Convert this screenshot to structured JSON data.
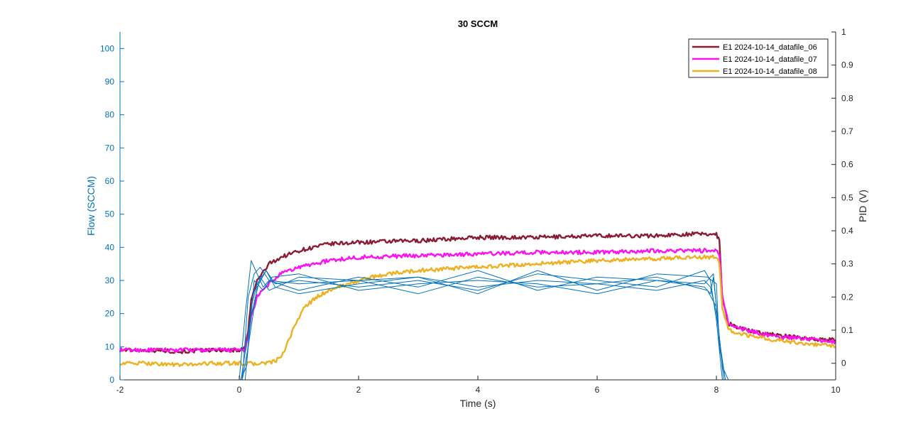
{
  "chart_data": {
    "type": "line",
    "title": "30 SCCM",
    "xlabel": "Time (s)",
    "ylabel_left": "Flow (SCCM)",
    "ylabel_right": "PID (V)",
    "xlim": [
      -2,
      10
    ],
    "ylim_left": [
      0,
      105
    ],
    "ylim_right": [
      -0.05,
      1.0
    ],
    "x_ticks": [
      "-2",
      "0",
      "2",
      "4",
      "6",
      "8",
      "10"
    ],
    "y_left_ticks": [
      "0",
      "10",
      "20",
      "30",
      "40",
      "50",
      "60",
      "70",
      "80",
      "90",
      "100"
    ],
    "y_right_ticks": [
      "0",
      "0.1",
      "0.2",
      "0.3",
      "0.4",
      "0.5",
      "0.6",
      "0.7",
      "0.8",
      "0.9",
      "1"
    ],
    "grid": false,
    "legend_position": "top-right",
    "colors": {
      "left_axis": "#0072BD",
      "flow_lines": "#0072BD",
      "right_axis": "#262626"
    },
    "series": [
      {
        "name": "E1 2024-10-14_datafile_06",
        "axis": "right",
        "color": "#8B1A33",
        "x": [
          -2,
          -1.5,
          -1,
          -0.5,
          0,
          0.1,
          0.15,
          0.2,
          0.3,
          0.5,
          0.7,
          1.0,
          1.5,
          2,
          3,
          4,
          5,
          6,
          7,
          7.5,
          7.9,
          8.0,
          8.05,
          8.1,
          8.2,
          8.5,
          9,
          9.5,
          10
        ],
        "y": [
          0.04,
          0.04,
          0.035,
          0.04,
          0.04,
          0.045,
          0.1,
          0.19,
          0.25,
          0.3,
          0.32,
          0.34,
          0.36,
          0.365,
          0.37,
          0.38,
          0.38,
          0.385,
          0.385,
          0.39,
          0.39,
          0.39,
          0.37,
          0.2,
          0.12,
          0.1,
          0.085,
          0.075,
          0.07
        ]
      },
      {
        "name": "E1 2024-10-14_datafile_07",
        "axis": "right",
        "color": "#FF10F0",
        "x": [
          -2,
          -1.5,
          -1,
          -0.5,
          0,
          0.1,
          0.15,
          0.2,
          0.3,
          0.5,
          0.7,
          1.0,
          1.5,
          2,
          3,
          4,
          5,
          6,
          7,
          7.5,
          7.9,
          8.0,
          8.05,
          8.1,
          8.2,
          8.5,
          9,
          9.5,
          10
        ],
        "y": [
          0.04,
          0.04,
          0.04,
          0.04,
          0.04,
          0.04,
          0.08,
          0.14,
          0.2,
          0.24,
          0.27,
          0.29,
          0.31,
          0.32,
          0.325,
          0.33,
          0.335,
          0.335,
          0.34,
          0.34,
          0.34,
          0.34,
          0.33,
          0.2,
          0.12,
          0.1,
          0.08,
          0.075,
          0.065
        ]
      },
      {
        "name": "E1 2024-10-14_datafile_08",
        "axis": "right",
        "color": "#EDB120",
        "x": [
          -2,
          -1.5,
          -1,
          -0.5,
          0,
          0.3,
          0.6,
          0.75,
          0.85,
          0.9,
          1.0,
          1.1,
          1.3,
          1.5,
          2,
          2.5,
          3,
          4,
          5,
          6,
          7,
          7.5,
          7.9,
          8.0,
          8.05,
          8.1,
          8.2,
          8.5,
          9,
          9.5,
          10
        ],
        "y": [
          0,
          0,
          -0.005,
          0,
          0,
          -0.002,
          0.005,
          0.03,
          0.08,
          0.1,
          0.14,
          0.17,
          0.2,
          0.22,
          0.25,
          0.27,
          0.28,
          0.29,
          0.3,
          0.31,
          0.315,
          0.32,
          0.32,
          0.32,
          0.3,
          0.17,
          0.1,
          0.085,
          0.07,
          0.06,
          0.05
        ]
      },
      {
        "axis": "left",
        "color": "#0072BD",
        "x": [
          -0.2,
          0,
          0.1,
          0.2,
          0.3,
          0.4,
          0.5,
          1,
          2,
          3,
          4,
          5,
          6,
          7,
          7.8,
          7.9,
          8.0,
          8.1,
          8.15
        ],
        "y": [
          0,
          0,
          20,
          36,
          32,
          28,
          30,
          29,
          30,
          31,
          28,
          30,
          29,
          27,
          30,
          28,
          20,
          5,
          0
        ]
      },
      {
        "axis": "left",
        "color": "#0072BD",
        "x": [
          -0.1,
          0.05,
          0.15,
          0.25,
          0.35,
          0.5,
          1,
          2,
          3,
          4,
          5,
          6,
          7,
          7.8,
          7.9,
          7.95,
          8.1,
          8.2
        ],
        "y": [
          0,
          0,
          25,
          32,
          34,
          30,
          27,
          31,
          28,
          33,
          27,
          31,
          30,
          28,
          26,
          31,
          4,
          0
        ]
      },
      {
        "axis": "left",
        "color": "#0072BD",
        "x": [
          0,
          0.1,
          0.2,
          0.3,
          0.45,
          0.6,
          1,
          2,
          3,
          4,
          5,
          6,
          7,
          7.85,
          8.0,
          8.05,
          8.15
        ],
        "y": [
          0,
          0,
          22,
          29,
          33,
          28,
          26,
          29,
          31,
          26,
          33,
          27,
          32,
          31,
          29,
          10,
          0
        ]
      },
      {
        "axis": "left",
        "color": "#0072BD",
        "x": [
          0.02,
          0.12,
          0.25,
          0.4,
          0.55,
          1,
          2,
          3,
          4,
          5,
          6,
          7,
          7.8,
          7.95,
          8.05,
          8.15
        ],
        "y": [
          0,
          4,
          30,
          27,
          31,
          32,
          27,
          29,
          30,
          29,
          26,
          30,
          29,
          32,
          12,
          0
        ]
      },
      {
        "axis": "left",
        "color": "#0072BD",
        "x": [
          0.05,
          0.15,
          0.3,
          0.45,
          0.6,
          1,
          2,
          3,
          4,
          5,
          6,
          7,
          7.8,
          7.9,
          8.0,
          8.1
        ],
        "y": [
          0,
          10,
          28,
          33,
          29,
          30,
          28,
          30,
          27,
          32,
          30,
          28,
          33,
          30,
          18,
          0
        ]
      },
      {
        "axis": "left",
        "color": "#0072BD",
        "x": [
          0.03,
          0.18,
          0.35,
          0.5,
          1,
          2,
          3,
          4,
          5,
          6,
          7,
          7.85,
          8.0,
          8.12
        ],
        "y": [
          0,
          18,
          31,
          27,
          31,
          30,
          26,
          31,
          28,
          29,
          31,
          27,
          22,
          0
        ]
      }
    ]
  }
}
